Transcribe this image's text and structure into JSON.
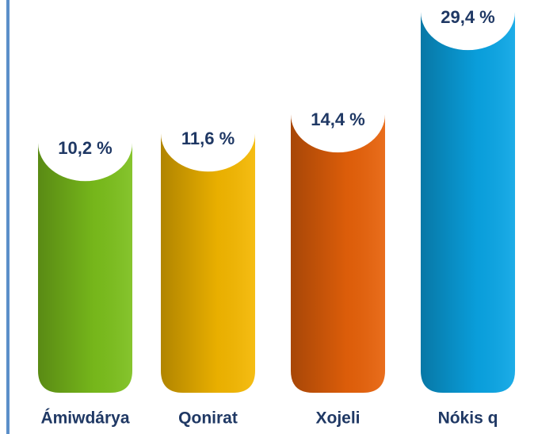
{
  "chart_data": {
    "type": "bar",
    "categories": [
      "Ámiwdárya",
      "Qonirat",
      "Xojeli",
      "Nókis q"
    ],
    "values": [
      10.2,
      11.6,
      14.4,
      29.4
    ],
    "value_labels": [
      "10,2 %",
      "11,6 %",
      "14,4 %",
      "29,4 %"
    ],
    "colors": [
      "#7cc01c",
      "#f5b800",
      "#e8620a",
      "#0aa6e6"
    ]
  }
}
